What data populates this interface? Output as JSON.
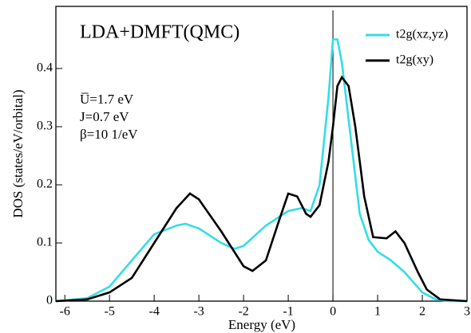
{
  "chart_data": {
    "type": "line",
    "annotations": [
      "LDA+DMFT(QMC)",
      "U̅=1.7 eV",
      "J=0.7 eV",
      "β=10 1/eV"
    ],
    "x_label": "Energy (eV)",
    "y_label": "DOS (states/eV/orbital)",
    "xlim": [
      -6.2,
      3
    ],
    "ylim": [
      0,
      0.5
    ],
    "xticks": [
      -6,
      -5,
      -4,
      -3,
      -2,
      -1,
      0,
      1,
      2,
      3
    ],
    "yticks": [
      0,
      0.1,
      0.2,
      0.3,
      0.4
    ],
    "vline": 0,
    "series": [
      {
        "name": "t2g(xz,yz)",
        "color": "#33dde6",
        "x": [
          -6.2,
          -5.5,
          -5,
          -4.5,
          -4,
          -3.5,
          -3.3,
          -3,
          -2.5,
          -2.2,
          -2,
          -1.5,
          -1,
          -0.7,
          -0.5,
          -0.3,
          -0.1,
          0,
          0.1,
          0.2,
          0.4,
          0.6,
          0.8,
          1,
          1.3,
          1.6,
          2,
          2.3,
          2.6,
          3
        ],
        "values": [
          0,
          0.005,
          0.025,
          0.07,
          0.115,
          0.13,
          0.133,
          0.125,
          0.1,
          0.09,
          0.095,
          0.13,
          0.155,
          0.16,
          0.155,
          0.2,
          0.35,
          0.45,
          0.45,
          0.41,
          0.28,
          0.15,
          0.105,
          0.085,
          0.07,
          0.05,
          0.015,
          0.003,
          0,
          0
        ]
      },
      {
        "name": "t2g(xy)",
        "color": "#000000",
        "x": [
          -6.2,
          -5.5,
          -5,
          -4.5,
          -4,
          -3.5,
          -3.2,
          -3,
          -2.5,
          -2,
          -1.8,
          -1.5,
          -1.2,
          -1,
          -0.8,
          -0.6,
          -0.5,
          -0.3,
          -0.1,
          0,
          0.1,
          0.2,
          0.35,
          0.5,
          0.7,
          0.9,
          1.2,
          1.4,
          1.6,
          1.9,
          2.1,
          2.4,
          3
        ],
        "values": [
          0,
          0.003,
          0.015,
          0.04,
          0.1,
          0.16,
          0.185,
          0.175,
          0.12,
          0.06,
          0.052,
          0.07,
          0.14,
          0.185,
          0.18,
          0.15,
          0.145,
          0.165,
          0.24,
          0.3,
          0.37,
          0.385,
          0.37,
          0.3,
          0.18,
          0.11,
          0.108,
          0.12,
          0.1,
          0.05,
          0.02,
          0.003,
          0
        ]
      }
    ]
  }
}
